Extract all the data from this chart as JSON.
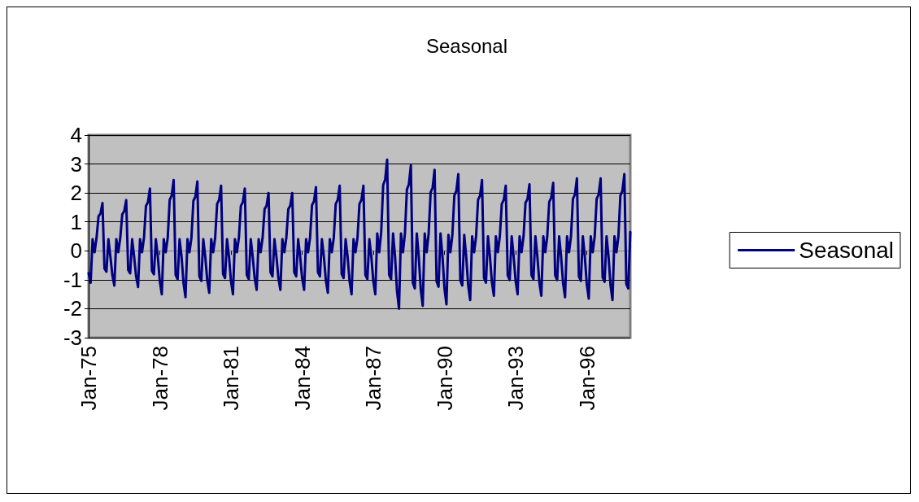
{
  "chart_data": {
    "type": "line",
    "title": "Seasonal",
    "categories": [
      "Jan-75",
      null,
      null,
      null,
      null,
      null,
      null,
      null,
      null,
      null,
      null,
      null,
      null,
      null,
      null,
      null,
      null,
      null,
      null,
      null,
      null,
      null,
      null,
      null,
      null,
      null,
      null,
      null,
      null,
      null,
      null,
      null,
      null,
      null,
      null,
      null,
      "Jan-78",
      null,
      null,
      null,
      null,
      null,
      null,
      null,
      null,
      null,
      null,
      null,
      null,
      null,
      null,
      null,
      null,
      null,
      null,
      null,
      null,
      null,
      null,
      null,
      null,
      null,
      null,
      null,
      null,
      null,
      null,
      null,
      null,
      null,
      null,
      null,
      "Jan-81",
      null,
      null,
      null,
      null,
      null,
      null,
      null,
      null,
      null,
      null,
      null,
      null,
      null,
      null,
      null,
      null,
      null,
      null,
      null,
      null,
      null,
      null,
      null,
      null,
      null,
      null,
      null,
      null,
      null,
      null,
      null,
      null,
      null,
      null,
      null,
      "Jan-84",
      null,
      null,
      null,
      null,
      null,
      null,
      null,
      null,
      null,
      null,
      null,
      null,
      null,
      null,
      null,
      null,
      null,
      null,
      null,
      null,
      null,
      null,
      null,
      null,
      null,
      null,
      null,
      null,
      null,
      null,
      null,
      null,
      null,
      null,
      null,
      "Jan-87",
      null,
      null,
      null,
      null,
      null,
      null,
      null,
      null,
      null,
      null,
      null,
      null,
      null,
      null,
      null,
      null,
      null,
      null,
      null,
      null,
      null,
      null,
      null,
      null,
      null,
      null,
      null,
      null,
      null,
      null,
      null,
      null,
      null,
      null,
      null,
      "Jan-90",
      null,
      null,
      null,
      null,
      null,
      null,
      null,
      null,
      null,
      null,
      null,
      null,
      null,
      null,
      null,
      null,
      null,
      null,
      null,
      null,
      null,
      null,
      null,
      null,
      null,
      null,
      null,
      null,
      null,
      null,
      null,
      null,
      null,
      null,
      null,
      "Jan-93",
      null,
      null,
      null,
      null,
      null,
      null,
      null,
      null,
      null,
      null,
      null,
      null,
      null,
      null,
      null,
      null,
      null,
      null,
      null,
      null,
      null,
      null,
      null,
      null,
      null,
      null,
      null,
      null,
      null,
      null,
      null,
      null,
      null,
      null,
      null,
      "Jan-96",
      null,
      null,
      null,
      null,
      null,
      null,
      null,
      null,
      null,
      null,
      null,
      null,
      null,
      null,
      null,
      null,
      null,
      null,
      null,
      null,
      null,
      null
    ],
    "series": [
      {
        "name": "Seasonal",
        "color": "#000080",
        "values": [
          -0.77,
          -1.1,
          0.4,
          -0.05,
          0.45,
          1.19,
          1.29,
          1.65,
          -0.61,
          -0.72,
          0.4,
          -0.2,
          -0.84,
          -1.2,
          0.4,
          -0.05,
          0.45,
          1.26,
          1.37,
          1.75,
          -0.66,
          -0.78,
          0.4,
          -0.2,
          -0.88,
          -1.25,
          0.4,
          -0.05,
          0.45,
          1.55,
          1.68,
          2.15,
          -0.69,
          -0.81,
          0.4,
          -0.2,
          -1.05,
          -1.5,
          0.4,
          -0.05,
          0.45,
          1.76,
          1.91,
          2.45,
          -0.83,
          -0.98,
          0.4,
          -0.2,
          -1.12,
          -1.6,
          0.4,
          -0.05,
          0.45,
          1.73,
          1.87,
          2.4,
          -0.88,
          -1.04,
          0.4,
          -0.2,
          -1.02,
          -1.45,
          0.4,
          -0.05,
          0.45,
          1.62,
          1.76,
          2.25,
          -0.8,
          -0.94,
          0.4,
          -0.2,
          -1.05,
          -1.5,
          0.4,
          -0.05,
          0.45,
          1.55,
          1.68,
          2.15,
          -0.83,
          -0.98,
          0.4,
          -0.2,
          -0.95,
          -1.35,
          0.4,
          -0.05,
          0.45,
          1.44,
          1.56,
          2.0,
          -0.74,
          -0.88,
          0.4,
          -0.2,
          -0.95,
          -1.35,
          0.4,
          -0.05,
          0.45,
          1.44,
          1.56,
          2.0,
          -0.74,
          -0.88,
          0.4,
          -0.2,
          -0.95,
          -1.35,
          0.4,
          -0.05,
          0.45,
          1.58,
          1.72,
          2.2,
          -0.74,
          -0.88,
          0.4,
          -0.2,
          -1.02,
          -1.45,
          0.4,
          -0.05,
          0.45,
          1.62,
          1.76,
          2.25,
          -0.8,
          -0.94,
          0.4,
          -0.2,
          -1.05,
          -1.5,
          0.4,
          -0.05,
          0.45,
          1.62,
          1.76,
          2.25,
          -0.83,
          -0.98,
          0.4,
          -0.2,
          -1.05,
          -1.5,
          0.6,
          -0.05,
          0.65,
          2.27,
          2.46,
          3.15,
          -0.83,
          -0.98,
          0.6,
          -0.2,
          -1.4,
          -2.0,
          0.6,
          -0.05,
          0.6,
          2.12,
          2.3,
          2.95,
          -1.1,
          -1.3,
          0.6,
          -0.2,
          -1.33,
          -1.9,
          0.6,
          -0.05,
          0.6,
          2.02,
          2.18,
          2.8,
          -1.05,
          -1.24,
          0.6,
          -0.2,
          -1.3,
          -1.85,
          0.55,
          -0.05,
          0.55,
          1.91,
          2.07,
          2.65,
          -1.02,
          -1.2,
          0.55,
          -0.2,
          -1.19,
          -1.7,
          0.5,
          -0.05,
          0.5,
          1.76,
          1.91,
          2.45,
          -0.94,
          -1.1,
          0.5,
          -0.2,
          -1.09,
          -1.55,
          0.5,
          -0.05,
          0.5,
          1.62,
          1.76,
          2.25,
          -0.85,
          -1.01,
          0.5,
          -0.2,
          -1.05,
          -1.5,
          0.5,
          -0.05,
          0.5,
          1.66,
          1.79,
          2.3,
          -0.83,
          -0.98,
          0.5,
          -0.2,
          -1.09,
          -1.55,
          0.5,
          -0.05,
          0.5,
          1.69,
          1.83,
          2.35,
          -0.85,
          -1.01,
          0.5,
          -0.2,
          -1.12,
          -1.6,
          0.5,
          -0.05,
          0.5,
          1.8,
          1.95,
          2.5,
          -0.88,
          -1.04,
          0.5,
          -0.2,
          -1.16,
          -1.65,
          0.5,
          -0.05,
          0.5,
          1.8,
          1.95,
          2.5,
          -0.91,
          -1.07,
          0.5,
          -0.2,
          -1.19,
          -1.7,
          0.5,
          -0.05,
          0.5,
          1.91,
          2.07,
          2.65,
          -1.15,
          -1.3,
          0.65
        ]
      }
    ],
    "ylim": [
      -3,
      4
    ],
    "yticks": [
      -3,
      -2,
      -1,
      0,
      1,
      2,
      3,
      4
    ],
    "grid": "y",
    "legend": "right",
    "marker": "none",
    "line_style": "solid"
  }
}
